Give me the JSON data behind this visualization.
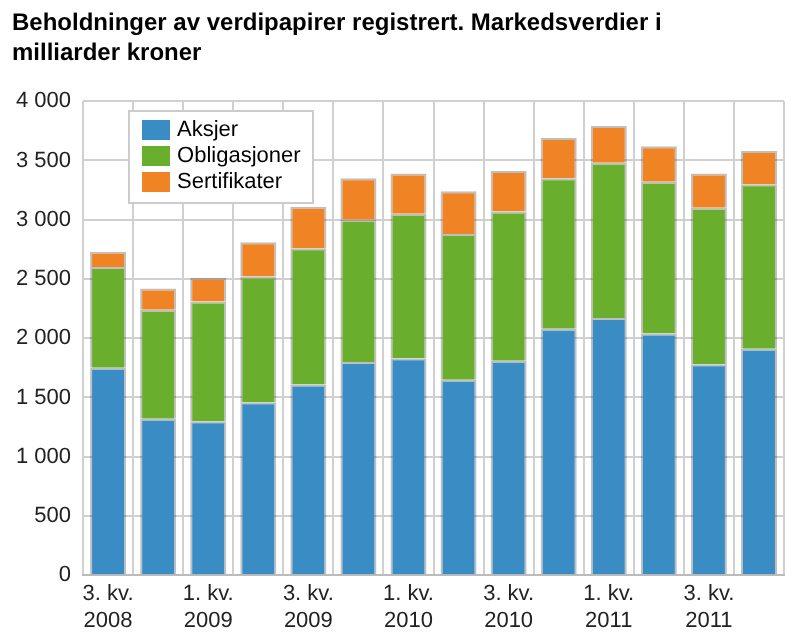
{
  "chart_data": {
    "type": "bar",
    "title": "Beholdninger av verdipapirer registrert. Markedsverdier i milliarder kroner",
    "categories": [
      "3. kv. 2008",
      null,
      "1. kv. 2009",
      null,
      "3. kv. 2009",
      null,
      "1. kv. 2010",
      null,
      "3. kv. 2010",
      null,
      "1. kv. 2011",
      null,
      "3. kv. 2011",
      null
    ],
    "series": [
      {
        "name": "Aksjer",
        "color": "#3a8dc4",
        "values": [
          1750,
          1320,
          1300,
          1460,
          1610,
          1800,
          1830,
          1650,
          1810,
          2080,
          2170,
          2040,
          1780,
          1910
        ]
      },
      {
        "name": "Obligasjoner",
        "color": "#6aae2e",
        "values": [
          850,
          920,
          1010,
          1060,
          1150,
          1200,
          1220,
          1230,
          1260,
          1270,
          1310,
          1280,
          1320,
          1390
        ]
      },
      {
        "name": "Sertifikater",
        "color": "#f08424",
        "values": [
          130,
          180,
          200,
          290,
          350,
          350,
          340,
          360,
          340,
          340,
          310,
          300,
          290,
          280
        ]
      }
    ],
    "stacked": true,
    "ylim": [
      0,
      4000
    ],
    "yticks": [
      0,
      500,
      {
        "value": 1000,
        "label": "1 000"
      },
      {
        "value": 1500,
        "label": "1 500"
      },
      {
        "value": 2000,
        "label": "2 000"
      },
      {
        "value": 2500,
        "label": "2 500"
      },
      {
        "value": 3000,
        "label": "3 000"
      },
      {
        "value": 3500,
        "label": "3 500"
      },
      {
        "value": 4000,
        "label": "4 000"
      }
    ],
    "grid": true,
    "legend": "top left"
  }
}
